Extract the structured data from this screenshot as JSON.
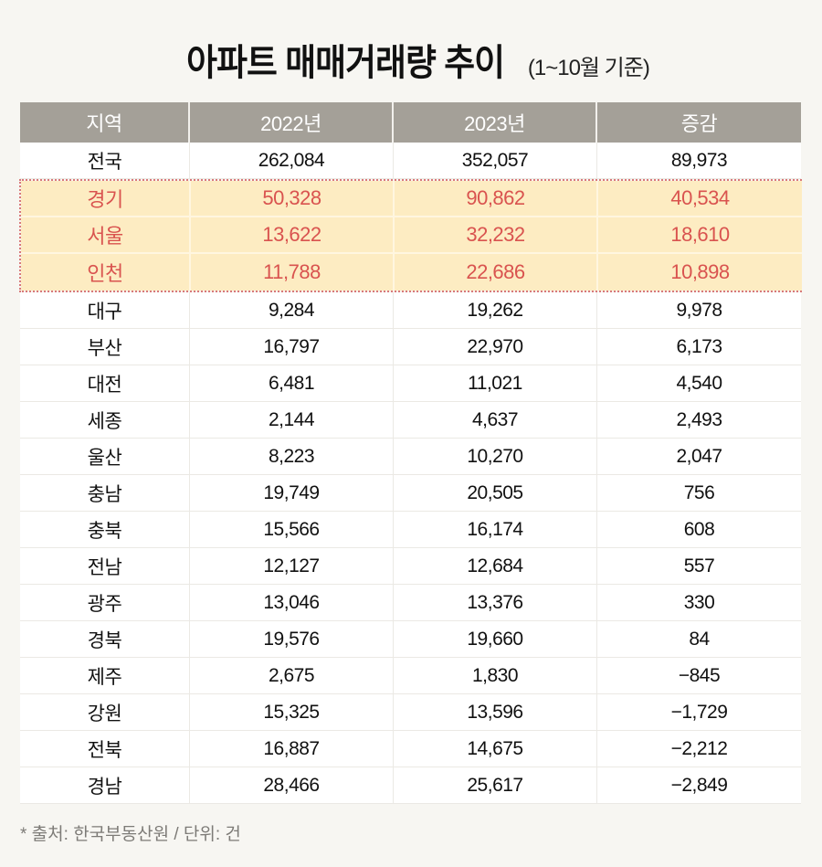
{
  "title": {
    "main": "아파트 매매거래량 추이",
    "sub": "(1~10월 기준)"
  },
  "table": {
    "headers": [
      "지역",
      "2022년",
      "2023년",
      "증감"
    ],
    "total_row": {
      "region": "전국",
      "y2022": "262,084",
      "y2023": "352,057",
      "change": "89,973"
    },
    "highlighted_rows": [
      {
        "region": "경기",
        "y2022": "50,328",
        "y2023": "90,862",
        "change": "40,534"
      },
      {
        "region": "서울",
        "y2022": "13,622",
        "y2023": "32,232",
        "change": "18,610"
      },
      {
        "region": "인천",
        "y2022": "11,788",
        "y2023": "22,686",
        "change": "10,898"
      }
    ],
    "rows": [
      {
        "region": "대구",
        "y2022": "9,284",
        "y2023": "19,262",
        "change": "9,978"
      },
      {
        "region": "부산",
        "y2022": "16,797",
        "y2023": "22,970",
        "change": "6,173"
      },
      {
        "region": "대전",
        "y2022": "6,481",
        "y2023": "11,021",
        "change": "4,540"
      },
      {
        "region": "세종",
        "y2022": "2,144",
        "y2023": "4,637",
        "change": "2,493"
      },
      {
        "region": "울산",
        "y2022": "8,223",
        "y2023": "10,270",
        "change": "2,047"
      },
      {
        "region": "충남",
        "y2022": "19,749",
        "y2023": "20,505",
        "change": "756"
      },
      {
        "region": "충북",
        "y2022": "15,566",
        "y2023": "16,174",
        "change": "608"
      },
      {
        "region": "전남",
        "y2022": "12,127",
        "y2023": "12,684",
        "change": "557"
      },
      {
        "region": "광주",
        "y2022": "13,046",
        "y2023": "13,376",
        "change": "330"
      },
      {
        "region": "경북",
        "y2022": "19,576",
        "y2023": "19,660",
        "change": "84"
      },
      {
        "region": "제주",
        "y2022": "2,675",
        "y2023": "1,830",
        "change": "−845"
      },
      {
        "region": "강원",
        "y2022": "15,325",
        "y2023": "13,596",
        "change": "−1,729"
      },
      {
        "region": "전북",
        "y2022": "16,887",
        "y2023": "14,675",
        "change": "−2,212"
      },
      {
        "region": "경남",
        "y2022": "28,466",
        "y2023": "25,617",
        "change": "−2,849"
      }
    ]
  },
  "colors": {
    "header_bg": "#a4a098",
    "highlight_bg": "#fdecc2",
    "highlight_text": "#d9534f",
    "highlight_border": "#d8797a",
    "page_bg": "#f7f6f2"
  },
  "footer": {
    "source": "* 출처: 한국부동산원 / 단위: 건"
  }
}
